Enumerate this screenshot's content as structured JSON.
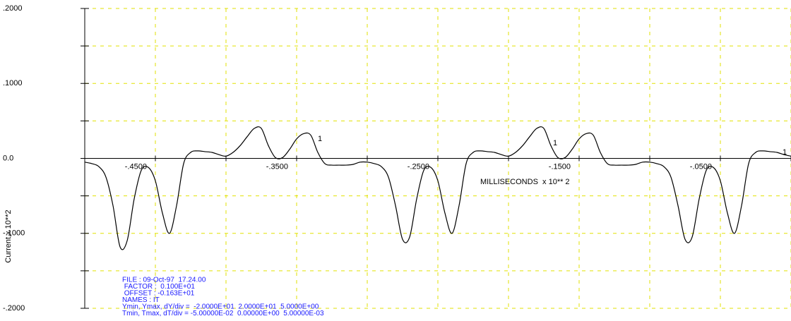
{
  "chart_data": {
    "type": "line",
    "y_label": "Current,x 10**2",
    "x_label": "MILLISECONDS  x 10** 2",
    "xlim": [
      -0.5,
      0
    ],
    "ylim": [
      -0.2,
      0.2
    ],
    "xticks": [
      {
        "value": -0.45,
        "label": "-.4500"
      },
      {
        "value": -0.35,
        "label": "-.3500"
      },
      {
        "value": -0.25,
        "label": "-.2500"
      },
      {
        "value": -0.15,
        "label": "-.1500"
      },
      {
        "value": -0.05,
        "label": "-.0500"
      }
    ],
    "x_minor_ticks": [
      -0.5,
      -0.4,
      -0.3,
      -0.2,
      -0.1,
      0
    ],
    "yticks": [
      {
        "value": 0.2,
        "label": ".2000"
      },
      {
        "value": 0.1,
        "label": ".1000"
      },
      {
        "value": 0,
        "label": "0.0"
      },
      {
        "value": -0.1,
        "label": "-.1000"
      },
      {
        "value": -0.2,
        "label": "-.2000"
      }
    ],
    "y_minor_ticks": [
      0.15,
      0.05,
      -0.05,
      -0.15
    ],
    "grid": true,
    "grid_color": "#e2e200",
    "x": [
      -0.5,
      -0.495,
      -0.49,
      -0.485,
      -0.48,
      -0.475,
      -0.47,
      -0.465,
      -0.46,
      -0.455,
      -0.45,
      -0.445,
      -0.44,
      -0.435,
      -0.43,
      -0.425,
      -0.42,
      -0.415,
      -0.41,
      -0.405,
      -0.4,
      -0.395,
      -0.39,
      -0.385,
      -0.38,
      -0.375,
      -0.37,
      -0.365,
      -0.36,
      -0.355,
      -0.35,
      -0.345,
      -0.34,
      -0.335,
      -0.33,
      -0.325,
      -0.32,
      -0.315,
      -0.31,
      -0.305,
      -0.3,
      -0.295,
      -0.29,
      -0.285,
      -0.28,
      -0.275,
      -0.27,
      -0.265,
      -0.26,
      -0.255,
      -0.25,
      -0.245,
      -0.24,
      -0.235,
      -0.23,
      -0.225,
      -0.22,
      -0.215,
      -0.21,
      -0.205,
      -0.2,
      -0.195,
      -0.19,
      -0.185,
      -0.18,
      -0.175,
      -0.17,
      -0.165,
      -0.16,
      -0.155,
      -0.15,
      -0.145,
      -0.14,
      -0.135,
      -0.13,
      -0.125,
      -0.12,
      -0.115,
      -0.11,
      -0.105,
      -0.1,
      -0.095,
      -0.09,
      -0.085,
      -0.08,
      -0.075,
      -0.07,
      -0.065,
      -0.06,
      -0.055,
      -0.05,
      -0.045,
      -0.04,
      -0.035,
      -0.03,
      -0.025,
      -0.02,
      -0.015,
      -0.01,
      -0.005,
      0
    ],
    "series": [
      {
        "color": "#000000",
        "values": [
          -0.005,
          -0.007,
          -0.011,
          -0.025,
          -0.063,
          -0.118,
          -0.11,
          -0.054,
          -0.016,
          -0.012,
          -0.03,
          -0.073,
          -0.1,
          -0.063,
          -0.007,
          0.008,
          0.01,
          0.009,
          0.008,
          0.005,
          0.003,
          0.008,
          0.017,
          0.029,
          0.04,
          0.04,
          0.017,
          0.001,
          0.001,
          0.012,
          0.026,
          0.033,
          0.031,
          0.008,
          -0.007,
          -0.009,
          -0.009,
          -0.009,
          -0.008,
          -0.005,
          -0.005,
          -0.007,
          -0.011,
          -0.025,
          -0.063,
          -0.108,
          -0.105,
          -0.054,
          -0.016,
          -0.012,
          -0.03,
          -0.073,
          -0.1,
          -0.063,
          -0.007,
          0.008,
          0.01,
          0.009,
          0.008,
          0.005,
          0.003,
          0.008,
          0.017,
          0.029,
          0.04,
          0.04,
          0.017,
          0.001,
          0.001,
          0.012,
          0.026,
          0.033,
          0.031,
          0.008,
          -0.007,
          -0.009,
          -0.009,
          -0.009,
          -0.008,
          -0.005,
          -0.005,
          -0.007,
          -0.011,
          -0.025,
          -0.063,
          -0.108,
          -0.105,
          -0.054,
          -0.016,
          -0.012,
          -0.03,
          -0.073,
          -0.1,
          -0.063,
          -0.007,
          0.008,
          0.01,
          0.009,
          0.008,
          0.005,
          0.003
        ]
      }
    ],
    "annotations": [
      {
        "text": "1",
        "x": -0.335,
        "y": 0.026
      },
      {
        "text": "1",
        "x": -0.1685,
        "y": 0.02
      },
      {
        "text": "1",
        "x": -0.006,
        "y": 0.008
      }
    ],
    "info": [
      "FILE : 09-Oct-97  17.24.00",
      " FACTOR :  0.100E+01",
      " OFFSET : -0.163E+01",
      "NAMES : IT",
      "Ymin, Ymax, dY/div =  -2.0000E+01  2.0000E+01  5.0000E+00",
      "Tmin, Tmax, dT/div = -5.00000E-02  0.00000E+00  5.00000E-03"
    ],
    "info_color": "#1a1aff"
  }
}
